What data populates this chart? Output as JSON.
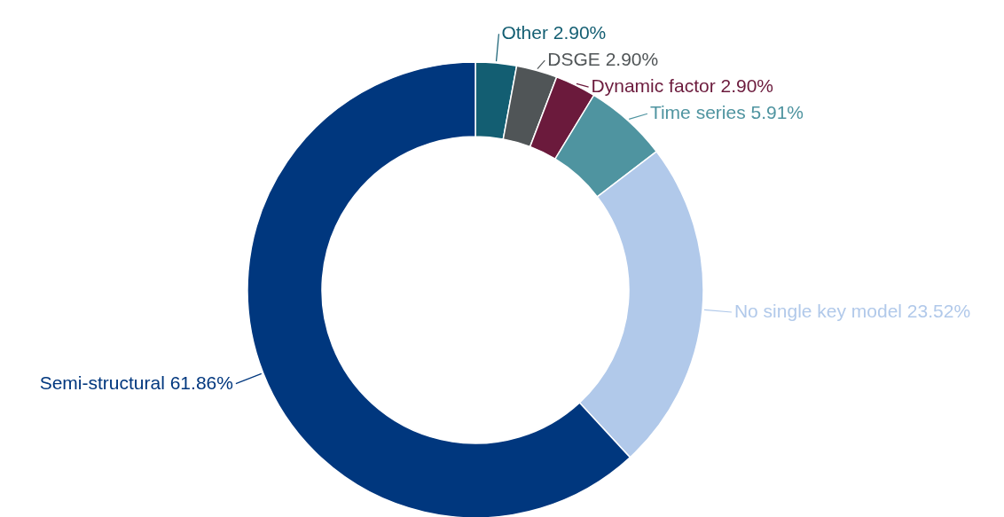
{
  "chart_data": {
    "type": "donut",
    "categories": [
      "Other",
      "DSGE",
      "Dynamic factor",
      "Time series",
      "No single key model",
      "Semi-structural"
    ],
    "values": [
      2.9,
      2.9,
      2.9,
      5.91,
      23.52,
      61.86
    ],
    "value_labels": [
      "2.90%",
      "2.90%",
      "2.90%",
      "5.91%",
      "23.52%",
      "61.86%"
    ],
    "colors": [
      "#135e72",
      "#505557",
      "#6b1a3c",
      "#4f94a0",
      "#b1c9ea",
      "#00377e"
    ]
  }
}
